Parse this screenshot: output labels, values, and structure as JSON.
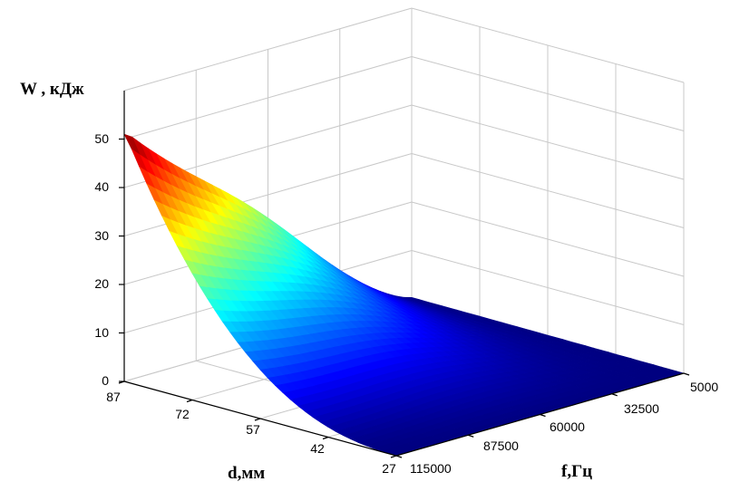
{
  "chart_data": {
    "type": "surface3d",
    "zlabel": "W , кДж",
    "xlabel": "d,мм",
    "ylabel": "f,Гц",
    "d_ticks": [
      87,
      72,
      57,
      42,
      27
    ],
    "f_ticks": [
      5000,
      32500,
      60000,
      87500,
      115000
    ],
    "w_ticks": [
      0,
      10,
      20,
      30,
      40,
      50
    ],
    "d_range": [
      27,
      87
    ],
    "f_range": [
      5000,
      115000
    ],
    "w_range": [
      0,
      50
    ],
    "grid": true,
    "colormap": "jet",
    "surface_samples": [
      {
        "d": 87,
        "f": 115000,
        "w": 51
      },
      {
        "d": 57,
        "f": 115000,
        "w": 19
      },
      {
        "d": 27,
        "f": 115000,
        "w": 0.5
      },
      {
        "d": 87,
        "f": 60000,
        "w": 19
      },
      {
        "d": 57,
        "f": 60000,
        "w": 6
      },
      {
        "d": 27,
        "f": 60000,
        "w": 0
      },
      {
        "d": 87,
        "f": 5000,
        "w": 0.5
      },
      {
        "d": 57,
        "f": 5000,
        "w": 0
      },
      {
        "d": 27,
        "f": 5000,
        "w": 0
      }
    ]
  }
}
